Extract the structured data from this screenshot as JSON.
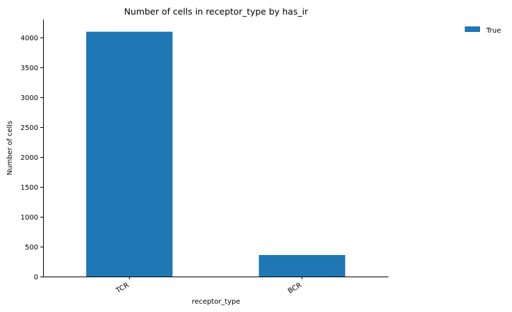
{
  "chart_data": {
    "type": "bar",
    "title": "Number of cells in receptor_type by has_ir",
    "xlabel": "receptor_type",
    "ylabel": "Number of cells",
    "categories": [
      "TCR",
      "BCR"
    ],
    "series": [
      {
        "name": "True",
        "values": [
          4095,
          360
        ],
        "color": "#1f77b4"
      }
    ],
    "ylim": [
      0,
      4300
    ],
    "yticks": [
      0,
      500,
      1000,
      1500,
      2000,
      2500,
      3000,
      3500,
      4000
    ],
    "grid": false,
    "legend": "top-right, outside plot"
  }
}
